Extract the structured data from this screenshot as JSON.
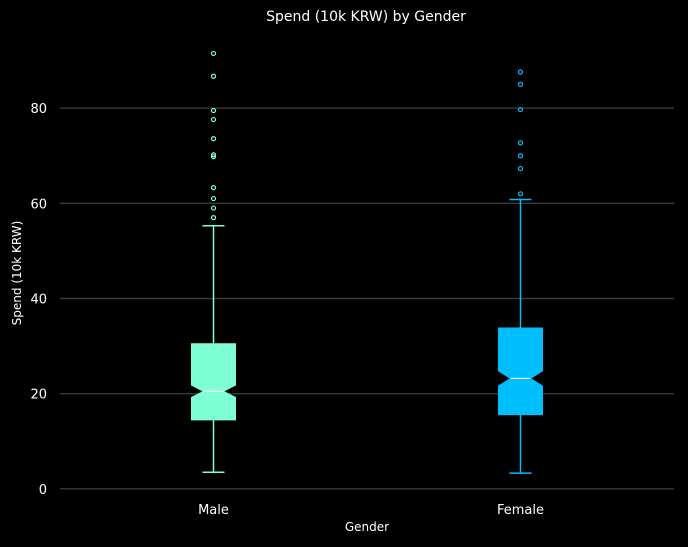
{
  "chart_data": {
    "type": "boxplot",
    "title": "Spend (10k KRW) by Gender",
    "xlabel": "Gender",
    "ylabel": "Spend (10k KRW)",
    "ylim": [
      -1.5,
      96
    ],
    "yticks": [
      0,
      20,
      40,
      60,
      80
    ],
    "grid": "horizontal",
    "notched": true,
    "categories": [
      "Male",
      "Female"
    ],
    "series": [
      {
        "category": "Male",
        "color": "#7fffd4",
        "whisker_low": 3.5,
        "q1": 14.5,
        "median": 20.5,
        "q3": 30.5,
        "whisker_high": 55.3,
        "notch_low": 19.2,
        "notch_high": 21.8,
        "outliers": [
          57.0,
          59.0,
          61.0,
          63.3,
          69.8,
          70.2,
          73.6,
          77.6,
          79.5,
          86.7,
          91.5
        ]
      },
      {
        "category": "Female",
        "color": "#00bfff",
        "whisker_low": 3.3,
        "q1": 15.6,
        "median": 23.2,
        "q3": 33.8,
        "whisker_high": 60.8,
        "notch_low": 21.6,
        "notch_high": 24.8,
        "outliers": [
          62.0,
          67.3,
          70.0,
          72.7,
          79.7,
          85.0,
          87.6
        ]
      }
    ]
  }
}
